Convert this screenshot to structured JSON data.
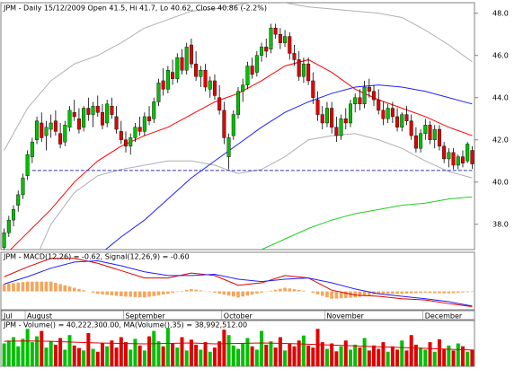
{
  "chart_data": [
    {
      "type": "candlestick",
      "title": "JPM - Daily 15/12/2009 Open 41.5, Hi 41.7, Lo 40.62, Close 40.86 (-2.2%)",
      "categories": [
        "Jul",
        null,
        null,
        null,
        null,
        "August",
        null,
        null,
        null,
        null,
        null,
        null,
        null,
        null,
        null,
        null,
        null,
        null,
        null,
        null,
        null,
        null,
        null,
        null,
        null,
        null,
        "September",
        null,
        null,
        null,
        null,
        null,
        null,
        null,
        null,
        null,
        null,
        null,
        null,
        null,
        null,
        null,
        null,
        null,
        null,
        null,
        null,
        "October",
        null,
        null,
        null,
        null,
        null,
        null,
        null,
        null,
        null,
        null,
        null,
        null,
        null,
        null,
        null,
        null,
        null,
        null,
        null,
        null,
        null,
        "November",
        null,
        null,
        null,
        null,
        null,
        null,
        null,
        null,
        null,
        null,
        null,
        null,
        null,
        null,
        null,
        null,
        null,
        null,
        null,
        null,
        "December",
        null,
        null,
        null,
        null,
        null,
        null,
        null,
        null,
        null,
        null
      ],
      "open": [
        36.9,
        37.6,
        38.2,
        38.9,
        39.4,
        40.3,
        41.2,
        42.0,
        42.8,
        42.2,
        42.5,
        42.9,
        42.3,
        41.9,
        42.6,
        43.3,
        43.0,
        42.6,
        43.5,
        43.2,
        43.6,
        43.3,
        42.8,
        43.6,
        43.1,
        42.4,
        42.0,
        41.7,
        42.1,
        42.6,
        42.4,
        43.1,
        43.0,
        43.8,
        44.8,
        44.4,
        45.2,
        44.9,
        45.9,
        45.3,
        46.5,
        45.6,
        45.0,
        45.3,
        44.4,
        44.8,
        44.0,
        43.4,
        41.2,
        42.2,
        43.2,
        44.3,
        44.6,
        45.5,
        45.2,
        46.0,
        46.4,
        46.3,
        47.3,
        47.0,
        46.6,
        46.9,
        46.1,
        45.8,
        45.0,
        45.6,
        44.8,
        43.9,
        43.2,
        42.8,
        43.5,
        42.6,
        42.2,
        43.0,
        42.8,
        43.7,
        44.0,
        43.7,
        44.5,
        44.3,
        43.9,
        43.4,
        43.0,
        43.5,
        43.1,
        42.6,
        43.2,
        42.9,
        42.2,
        41.6,
        42.3,
        42.7,
        42.0,
        42.5,
        41.7,
        41.1,
        41.4,
        40.8,
        41.2,
        41.0,
        41.5
      ],
      "high": [
        37.8,
        38.4,
        38.9,
        39.6,
        40.4,
        41.5,
        42.1,
        43.1,
        43.3,
        42.9,
        43.2,
        43.4,
        42.8,
        42.9,
        43.6,
        43.9,
        43.5,
        43.6,
        44.0,
        43.8,
        44.1,
        43.7,
        43.9,
        44.0,
        43.6,
        42.9,
        42.4,
        42.3,
        42.8,
        43.1,
        43.3,
        43.6,
        44.0,
        44.9,
        45.4,
        45.5,
        45.8,
        46.1,
        46.3,
        46.6,
        46.8,
        46.2,
        45.5,
        45.6,
        45.0,
        45.1,
        44.6,
        43.8,
        42.3,
        43.4,
        44.5,
        44.9,
        45.7,
        45.9,
        46.2,
        46.6,
        46.8,
        47.5,
        47.5,
        47.3,
        47.2,
        47.1,
        46.5,
        46.2,
        45.9,
        45.9,
        45.2,
        44.3,
        43.6,
        43.8,
        43.8,
        43.1,
        43.2,
        43.5,
        43.9,
        44.2,
        44.4,
        44.8,
        44.9,
        44.6,
        44.4,
        43.8,
        43.7,
        43.8,
        43.5,
        43.3,
        43.6,
        43.2,
        42.6,
        42.5,
        43.0,
        42.9,
        42.7,
        42.7,
        41.9,
        41.6,
        41.6,
        41.3,
        41.5,
        41.9,
        41.7
      ],
      "low": [
        36.8,
        37.4,
        37.9,
        38.6,
        39.2,
        40.1,
        40.9,
        41.8,
        41.9,
        41.5,
        42.1,
        42.2,
        41.6,
        41.7,
        42.4,
        42.9,
        42.3,
        42.4,
        42.9,
        42.6,
        43.1,
        42.5,
        42.6,
        43.0,
        42.3,
        41.8,
        41.4,
        41.3,
        41.9,
        42.2,
        42.2,
        42.7,
        42.8,
        43.6,
        44.1,
        44.2,
        44.6,
        44.7,
        45.1,
        45.1,
        45.4,
        44.8,
        44.5,
        44.3,
        44.0,
        43.9,
        43.2,
        41.8,
        40.6,
        42.0,
        43.0,
        43.8,
        44.4,
        44.9,
        45.0,
        45.7,
        45.9,
        46.1,
        46.8,
        46.3,
        46.4,
        45.8,
        45.5,
        44.8,
        44.7,
        44.6,
        43.7,
        42.9,
        42.5,
        42.6,
        42.3,
        41.9,
        42.0,
        42.5,
        42.6,
        43.3,
        43.4,
        43.5,
        44.0,
        43.6,
        43.2,
        42.7,
        42.8,
        42.8,
        42.4,
        42.4,
        42.7,
        42.0,
        41.4,
        41.4,
        42.0,
        41.8,
        41.6,
        41.5,
        40.9,
        40.7,
        40.6,
        40.6,
        40.7,
        40.9,
        40.62
      ],
      "close": [
        37.6,
        38.2,
        38.7,
        39.4,
        40.2,
        41.3,
        41.9,
        42.9,
        42.1,
        42.6,
        42.8,
        42.4,
        41.8,
        42.7,
        43.4,
        43.1,
        42.5,
        43.5,
        43.2,
        43.6,
        43.3,
        42.7,
        43.7,
        43.2,
        42.5,
        42.0,
        41.7,
        42.1,
        42.6,
        42.4,
        43.1,
        42.9,
        43.8,
        44.7,
        44.4,
        45.3,
        44.9,
        45.9,
        45.3,
        46.4,
        45.6,
        45.0,
        45.3,
        44.5,
        44.8,
        44.1,
        43.4,
        42.1,
        42.1,
        43.2,
        44.3,
        44.6,
        45.5,
        45.1,
        46.0,
        46.4,
        46.2,
        47.3,
        47.0,
        46.6,
        46.9,
        46.1,
        45.8,
        45.0,
        45.6,
        44.8,
        44.0,
        43.2,
        42.8,
        43.5,
        42.6,
        42.2,
        43.0,
        42.8,
        43.7,
        44.0,
        43.7,
        44.5,
        44.3,
        43.9,
        43.4,
        43.0,
        43.5,
        43.1,
        42.6,
        43.2,
        42.9,
        42.2,
        41.6,
        42.3,
        42.7,
        42.0,
        42.5,
        41.7,
        41.1,
        41.4,
        40.8,
        41.2,
        40.9,
        41.8,
        40.86
      ],
      "up_color": "#00c000",
      "down_color": "#e00000",
      "overlays": [
        {
          "color": "#b0b0b0",
          "x": [
            0,
            5,
            10,
            15,
            20,
            25,
            30,
            35,
            40,
            45,
            50,
            55,
            60,
            65,
            70,
            75,
            80,
            85,
            90,
            95,
            100
          ],
          "values": [
            41.5,
            43.5,
            44.8,
            45.6,
            46.0,
            46.6,
            47.3,
            47.7,
            48.1,
            48.2,
            48.4,
            48.6,
            48.5,
            48.3,
            48.2,
            48.1,
            48.0,
            47.8,
            47.2,
            46.5,
            45.7
          ]
        },
        {
          "color": "#b0b0b0",
          "x": [
            0,
            5,
            10,
            15,
            20,
            25,
            30,
            35,
            40,
            45,
            50,
            55,
            60,
            65,
            70,
            75,
            80,
            85,
            90,
            95,
            100
          ],
          "values": [
            33.5,
            35.5,
            38.0,
            39.5,
            40.3,
            40.6,
            40.8,
            41.0,
            41.0,
            40.8,
            40.4,
            40.6,
            41.2,
            42.0,
            42.2,
            42.3,
            42.0,
            41.6,
            41.0,
            40.5,
            40.2
          ]
        },
        {
          "color": "#ff0000",
          "x": [
            0,
            5,
            10,
            15,
            20,
            25,
            30,
            35,
            40,
            45,
            50,
            55,
            60,
            65,
            70,
            75,
            80,
            85,
            90,
            95,
            100
          ],
          "values": [
            36.5,
            37.6,
            38.7,
            40.0,
            41.0,
            41.7,
            42.2,
            42.6,
            43.2,
            43.8,
            44.2,
            44.8,
            45.5,
            45.8,
            45.2,
            44.4,
            43.9,
            43.5,
            43.1,
            42.6,
            42.2
          ]
        },
        {
          "color": "#2020ff",
          "x": [
            0,
            5,
            10,
            15,
            20,
            25,
            30,
            35,
            40,
            45,
            50,
            55,
            60,
            65,
            70,
            75,
            80,
            85,
            90,
            95,
            100
          ],
          "values": [
            33.5,
            34.3,
            35.0,
            35.8,
            36.5,
            37.4,
            38.2,
            39.2,
            40.2,
            41.0,
            41.8,
            42.6,
            43.3,
            43.8,
            44.2,
            44.5,
            44.6,
            44.5,
            44.3,
            44.0,
            43.7
          ]
        },
        {
          "color": "#20d020",
          "x": [
            0,
            5,
            10,
            15,
            20,
            25,
            30,
            35,
            40,
            45,
            50,
            55,
            60,
            65,
            70,
            75,
            80,
            85,
            90,
            95,
            100
          ],
          "values": [
            30.8,
            31.3,
            31.8,
            32.3,
            32.8,
            33.3,
            33.8,
            34.4,
            35.0,
            35.6,
            36.2,
            36.8,
            37.3,
            37.8,
            38.2,
            38.5,
            38.7,
            38.9,
            39.0,
            39.2,
            39.3
          ]
        }
      ],
      "support": {
        "value": 40.55,
        "color": "#3030c0",
        "x": [
          6,
          100
        ]
      },
      "ylim": [
        36.8,
        48.5
      ],
      "yticks": [
        {
          "value": 38,
          "label": "38.0"
        },
        {
          "value": 40,
          "label": "40.0"
        },
        {
          "value": 42,
          "label": "42.0"
        },
        {
          "value": 44,
          "label": "44.0"
        },
        {
          "value": 46,
          "label": "46.0"
        },
        {
          "value": 48,
          "label": "48.0"
        }
      ]
    },
    {
      "type": "line",
      "title": "JPM - MACD(12,26) = -0.62, Signal(12,26,9) = -0.60",
      "x": [
        0,
        5,
        10,
        15,
        20,
        25,
        30,
        35,
        40,
        45,
        50,
        55,
        60,
        65,
        70,
        75,
        80,
        85,
        90,
        95,
        100
      ],
      "series": [
        {
          "color": "#e00000",
          "values": [
            0.6,
            1.0,
            1.35,
            1.35,
            1.15,
            0.85,
            0.55,
            0.55,
            0.75,
            0.65,
            0.25,
            0.35,
            0.65,
            0.55,
            0.05,
            -0.15,
            -0.2,
            -0.3,
            -0.35,
            -0.5,
            -0.62
          ]
        },
        {
          "color": "#2020ff",
          "values": [
            0.3,
            0.6,
            0.95,
            1.2,
            1.25,
            1.05,
            0.8,
            0.65,
            0.65,
            0.7,
            0.5,
            0.4,
            0.5,
            0.55,
            0.35,
            0.1,
            -0.1,
            -0.2,
            -0.3,
            -0.42,
            -0.6
          ]
        }
      ],
      "histogram": {
        "color": "#f5a55a",
        "values": [
          0.3,
          0.32,
          0.34,
          0.36,
          0.38,
          0.4,
          0.4,
          0.4,
          0.4,
          0.4,
          0.4,
          0.35,
          0.3,
          0.25,
          0.2,
          0.15,
          0.1,
          0.05,
          0.0,
          -0.05,
          -0.1,
          -0.12,
          -0.14,
          -0.16,
          -0.18,
          -0.2,
          -0.21,
          -0.22,
          -0.23,
          -0.24,
          -0.25,
          -0.22,
          -0.19,
          -0.16,
          -0.13,
          -0.1,
          -0.06,
          -0.02,
          0.02,
          0.06,
          0.1,
          0.07,
          0.04,
          0.01,
          -0.02,
          -0.05,
          -0.09,
          -0.13,
          -0.17,
          -0.21,
          -0.25,
          -0.21,
          -0.17,
          -0.13,
          -0.09,
          -0.05,
          -0.01,
          0.03,
          0.07,
          0.11,
          0.15,
          0.12,
          0.09,
          0.06,
          0.03,
          0.0,
          -0.06,
          -0.12,
          -0.18,
          -0.24,
          -0.3,
          -0.29,
          -0.28,
          -0.27,
          -0.26,
          -0.25,
          -0.22,
          -0.19,
          -0.16,
          -0.13,
          -0.1,
          -0.1,
          -0.1,
          -0.1,
          -0.1,
          -0.1,
          -0.09,
          -0.08,
          -0.07,
          -0.06,
          -0.05,
          -0.06,
          -0.07,
          -0.07,
          -0.08,
          -0.08,
          -0.07,
          -0.05,
          -0.04,
          -0.03,
          -0.02
        ]
      },
      "ylim": [
        -0.75,
        1.6
      ]
    },
    {
      "type": "bar",
      "title": "JPM - Volume() = 40,222,300.00, MA(Volume(),35) = 38,992,512.00",
      "values": [
        55,
        62,
        70,
        48,
        66,
        90,
        58,
        72,
        85,
        45,
        60,
        52,
        68,
        40,
        75,
        50,
        44,
        38,
        80,
        42,
        35,
        55,
        48,
        62,
        45,
        70,
        58,
        40,
        66,
        50,
        38,
        72,
        85,
        60,
        48,
        92,
        55,
        45,
        70,
        38,
        64,
        52,
        40,
        58,
        35,
        45,
        60,
        88,
        75,
        50,
        42,
        55,
        68,
        48,
        40,
        85,
        52,
        60,
        45,
        70,
        38,
        55,
        48,
        62,
        74,
        50,
        45,
        90,
        58,
        42,
        55,
        36,
        48,
        62,
        40,
        52,
        45,
        68,
        38,
        50,
        42,
        58,
        35,
        48,
        40,
        62,
        38,
        75,
        52,
        45,
        40,
        58,
        35,
        65,
        42,
        50,
        38,
        55,
        48,
        35,
        40.2
      ],
      "ma": {
        "color": "#e00000",
        "x": [
          0,
          5,
          10,
          15,
          20,
          25,
          30,
          35,
          40,
          45,
          50,
          55,
          60,
          65,
          70,
          75,
          80,
          85,
          90,
          95,
          100
        ],
        "values": [
          60,
          61,
          60,
          58,
          56,
          55,
          54,
          55,
          56,
          54,
          55,
          56,
          55,
          53,
          51,
          49,
          47,
          45,
          43,
          41,
          39
        ]
      },
      "ylim": [
        0,
        110
      ]
    }
  ]
}
